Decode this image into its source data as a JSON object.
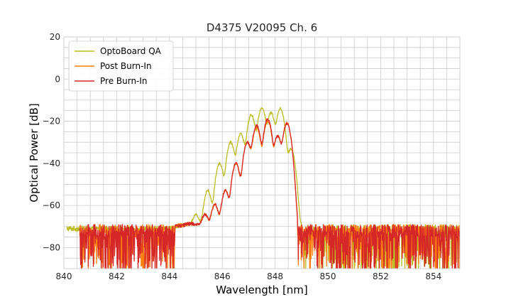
{
  "chart_data": {
    "type": "line",
    "title": "D4375 V20095 Ch. 6",
    "xlabel": "Wavelength [nm]",
    "ylabel": "Optical Power [dB]",
    "xlim": [
      840,
      855
    ],
    "ylim": [
      -90,
      20
    ],
    "xticks": [
      "840",
      "842",
      "844",
      "846",
      "848",
      "850",
      "852",
      "854"
    ],
    "yticks": [
      "−80",
      "−60",
      "−40",
      "−20",
      "0",
      "20"
    ],
    "grid": true,
    "legend_position": "top-left",
    "series": [
      {
        "name": "OptoBoard QA",
        "color": "#bcbd22",
        "noise_range": [
          840.1,
          854.9
        ],
        "peaks": [
          [
            845.0,
            -66
          ],
          [
            845.45,
            -53
          ],
          [
            845.9,
            -40
          ],
          [
            846.32,
            -30
          ],
          [
            846.7,
            -26
          ],
          [
            847.1,
            -17
          ],
          [
            847.5,
            -13.5
          ],
          [
            847.85,
            -16
          ],
          [
            848.2,
            -14
          ],
          [
            848.6,
            -33
          ]
        ]
      },
      {
        "name": "Post Burn-In",
        "color": "#ff7f0e",
        "noise_range": [
          840.6,
          855.0
        ],
        "peaks": [
          [
            845.35,
            -66
          ],
          [
            845.72,
            -60
          ],
          [
            846.12,
            -53
          ],
          [
            846.52,
            -40
          ],
          [
            846.95,
            -30
          ],
          [
            847.3,
            -23
          ],
          [
            847.72,
            -20
          ],
          [
            848.1,
            -27
          ],
          [
            848.45,
            -21
          ]
        ]
      },
      {
        "name": "Pre Burn-In",
        "color": "#d62728",
        "noise_range": [
          840.6,
          855.0
        ],
        "peaks": [
          [
            845.35,
            -66
          ],
          [
            845.72,
            -60
          ],
          [
            846.12,
            -53
          ],
          [
            846.52,
            -40
          ],
          [
            846.95,
            -30
          ],
          [
            847.3,
            -22
          ],
          [
            847.72,
            -19
          ],
          [
            848.1,
            -27
          ],
          [
            848.45,
            -21
          ]
        ]
      }
    ]
  }
}
